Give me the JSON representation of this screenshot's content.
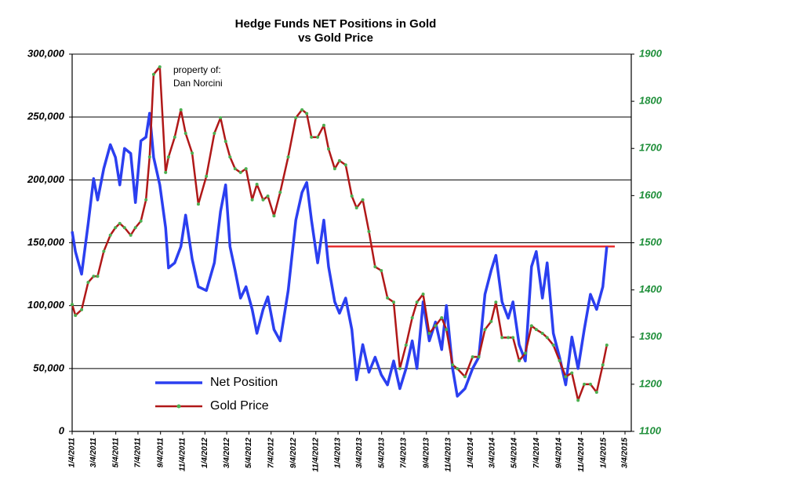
{
  "chart_data": {
    "type": "line",
    "title": "Hedge Funds NET Positions in Gold",
    "subtitle": "vs Gold Price",
    "annotations": [
      "property of:",
      "Dan Norcini"
    ],
    "x": [
      "2011-01-04",
      "2011-01-13",
      "2011-01-30",
      "2011-02-17",
      "2011-03-04",
      "2011-03-15",
      "2011-04-01",
      "2011-04-19",
      "2011-05-03",
      "2011-05-15",
      "2011-05-28",
      "2011-06-14",
      "2011-06-27",
      "2011-07-12",
      "2011-07-26",
      "2011-08-05",
      "2011-08-16",
      "2011-09-02",
      "2011-09-18",
      "2011-09-26",
      "2011-10-13",
      "2011-10-30",
      "2011-11-12",
      "2011-11-30",
      "2011-12-17",
      "2012-01-08",
      "2012-01-30",
      "2012-02-16",
      "2012-03-01",
      "2012-03-13",
      "2012-03-27",
      "2012-04-11",
      "2012-04-26",
      "2012-05-13",
      "2012-05-26",
      "2012-06-12",
      "2012-06-25",
      "2012-07-12",
      "2012-07-29",
      "2012-08-20",
      "2012-09-10",
      "2012-09-27",
      "2012-10-10",
      "2012-10-23",
      "2012-11-09",
      "2012-11-26",
      "2012-12-09",
      "2012-12-26",
      "2013-01-08",
      "2013-01-25",
      "2013-02-11",
      "2013-02-24",
      "2013-03-13",
      "2013-03-30",
      "2013-04-16",
      "2013-05-03",
      "2013-05-20",
      "2013-06-06",
      "2013-06-23",
      "2013-07-10",
      "2013-07-27",
      "2013-08-09",
      "2013-08-26",
      "2013-09-12",
      "2013-09-29",
      "2013-10-16",
      "2013-10-29",
      "2013-11-15",
      "2013-11-28",
      "2013-12-19",
      "2014-01-09",
      "2014-01-26",
      "2014-02-12",
      "2014-03-01",
      "2014-03-14",
      "2014-03-31",
      "2014-04-17",
      "2014-04-30",
      "2014-05-17",
      "2014-06-03",
      "2014-06-20",
      "2014-07-03",
      "2014-07-20",
      "2014-08-02",
      "2014-08-19",
      "2014-09-05",
      "2014-09-22",
      "2014-10-09",
      "2014-10-26",
      "2014-11-12",
      "2014-11-29",
      "2014-12-16",
      "2015-01-02",
      "2015-01-13"
    ],
    "series": [
      {
        "name": "Net Position",
        "color": "#2b3ff0",
        "axis": "y",
        "values": [
          159000,
          143000,
          125000,
          165000,
          201000,
          184000,
          209000,
          228000,
          218000,
          196000,
          225000,
          221000,
          182000,
          231000,
          234000,
          253000,
          218000,
          196000,
          162000,
          130000,
          134000,
          147000,
          172000,
          137000,
          115000,
          112000,
          134000,
          175000,
          196000,
          147000,
          128000,
          106000,
          115000,
          97000,
          78000,
          97000,
          107000,
          81000,
          72000,
          112000,
          168000,
          190000,
          198000,
          168000,
          134000,
          168000,
          131000,
          103000,
          94000,
          106000,
          81000,
          41000,
          69000,
          47000,
          59000,
          45000,
          37000,
          56000,
          34000,
          50000,
          72000,
          50000,
          103000,
          72000,
          87000,
          65000,
          100000,
          50000,
          28000,
          34000,
          50000,
          59000,
          109000,
          128000,
          140000,
          103000,
          90000,
          103000,
          69000,
          56000,
          131000,
          143000,
          106000,
          134000,
          78000,
          59000,
          37000,
          75000,
          50000,
          81000,
          109000,
          97000,
          115000,
          147000
        ]
      },
      {
        "name": "Gold Price",
        "color": "#b01818",
        "marker_color": "#4caf50",
        "axis": "y2",
        "values": [
          1369,
          1346,
          1358,
          1416,
          1429,
          1429,
          1482,
          1516,
          1532,
          1541,
          1532,
          1516,
          1532,
          1546,
          1591,
          1682,
          1857,
          1873,
          1649,
          1682,
          1724,
          1782,
          1732,
          1690,
          1582,
          1641,
          1732,
          1765,
          1715,
          1682,
          1657,
          1649,
          1657,
          1591,
          1624,
          1591,
          1599,
          1557,
          1607,
          1682,
          1765,
          1782,
          1774,
          1724,
          1724,
          1749,
          1699,
          1657,
          1674,
          1665,
          1599,
          1574,
          1591,
          1524,
          1449,
          1441,
          1383,
          1374,
          1233,
          1283,
          1341,
          1374,
          1391,
          1308,
          1324,
          1341,
          1316,
          1241,
          1233,
          1216,
          1258,
          1258,
          1316,
          1333,
          1374,
          1299,
          1299,
          1299,
          1250,
          1266,
          1324,
          1316,
          1308,
          1299,
          1283,
          1250,
          1216,
          1224,
          1166,
          1200,
          1200,
          1183,
          1241,
          1283
        ]
      }
    ],
    "reference_line": {
      "value": 147000,
      "xmin": "2012-12-04",
      "xmax": "2015-02-04",
      "color": "#e83030"
    },
    "xlim": [
      "2011-01-04",
      "2015-03-04"
    ],
    "xticks": [
      {
        "value": "2011-01-04",
        "label": "1/4/2011"
      },
      {
        "value": "2011-03-04",
        "label": "3/4/2011"
      },
      {
        "value": "2011-05-04",
        "label": "5/4/2011"
      },
      {
        "value": "2011-07-04",
        "label": "7/4/2011"
      },
      {
        "value": "2011-09-04",
        "label": "9/4/2011"
      },
      {
        "value": "2011-11-04",
        "label": "11/4/2011"
      },
      {
        "value": "2012-01-04",
        "label": "1/4/2012"
      },
      {
        "value": "2012-03-04",
        "label": "3/4/2012"
      },
      {
        "value": "2012-05-04",
        "label": "5/4/2012"
      },
      {
        "value": "2012-07-04",
        "label": "7/4/2012"
      },
      {
        "value": "2012-09-04",
        "label": "9/4/2012"
      },
      {
        "value": "2012-11-04",
        "label": "11/4/2012"
      },
      {
        "value": "2013-01-04",
        "label": "1/4/2013"
      },
      {
        "value": "2013-03-04",
        "label": "3/4/2013"
      },
      {
        "value": "2013-05-04",
        "label": "5/4/2013"
      },
      {
        "value": "2013-07-04",
        "label": "7/4/2013"
      },
      {
        "value": "2013-09-04",
        "label": "9/4/2013"
      },
      {
        "value": "2013-11-04",
        "label": "11/4/2013"
      },
      {
        "value": "2014-01-04",
        "label": "1/4/2014"
      },
      {
        "value": "2014-03-04",
        "label": "3/4/2014"
      },
      {
        "value": "2014-05-04",
        "label": "5/4/2014"
      },
      {
        "value": "2014-07-04",
        "label": "7/4/2014"
      },
      {
        "value": "2014-09-04",
        "label": "9/4/2014"
      },
      {
        "value": "2014-11-04",
        "label": "11/4/2014"
      },
      {
        "value": "2015-01-04",
        "label": "1/4/2015"
      },
      {
        "value": "2015-03-04",
        "label": "3/4/2015"
      }
    ],
    "ylim": [
      0,
      300000
    ],
    "yticks": [
      0,
      {
        "value": 50000,
        "label": "50,000"
      },
      {
        "value": 100000,
        "label": "100,000"
      },
      {
        "value": 150000,
        "label": "150,000"
      },
      {
        "value": 200000,
        "label": "200,000"
      },
      {
        "value": 250000,
        "label": "250,000"
      },
      {
        "value": 300000,
        "label": "300,000"
      }
    ],
    "y2lim": [
      1100,
      1900
    ],
    "y2ticks": [
      1100,
      1200,
      1300,
      1400,
      1500,
      1600,
      1700,
      1800,
      1900
    ],
    "y2_color": "#1f8f3a",
    "grid": true,
    "legend": "lower left"
  }
}
